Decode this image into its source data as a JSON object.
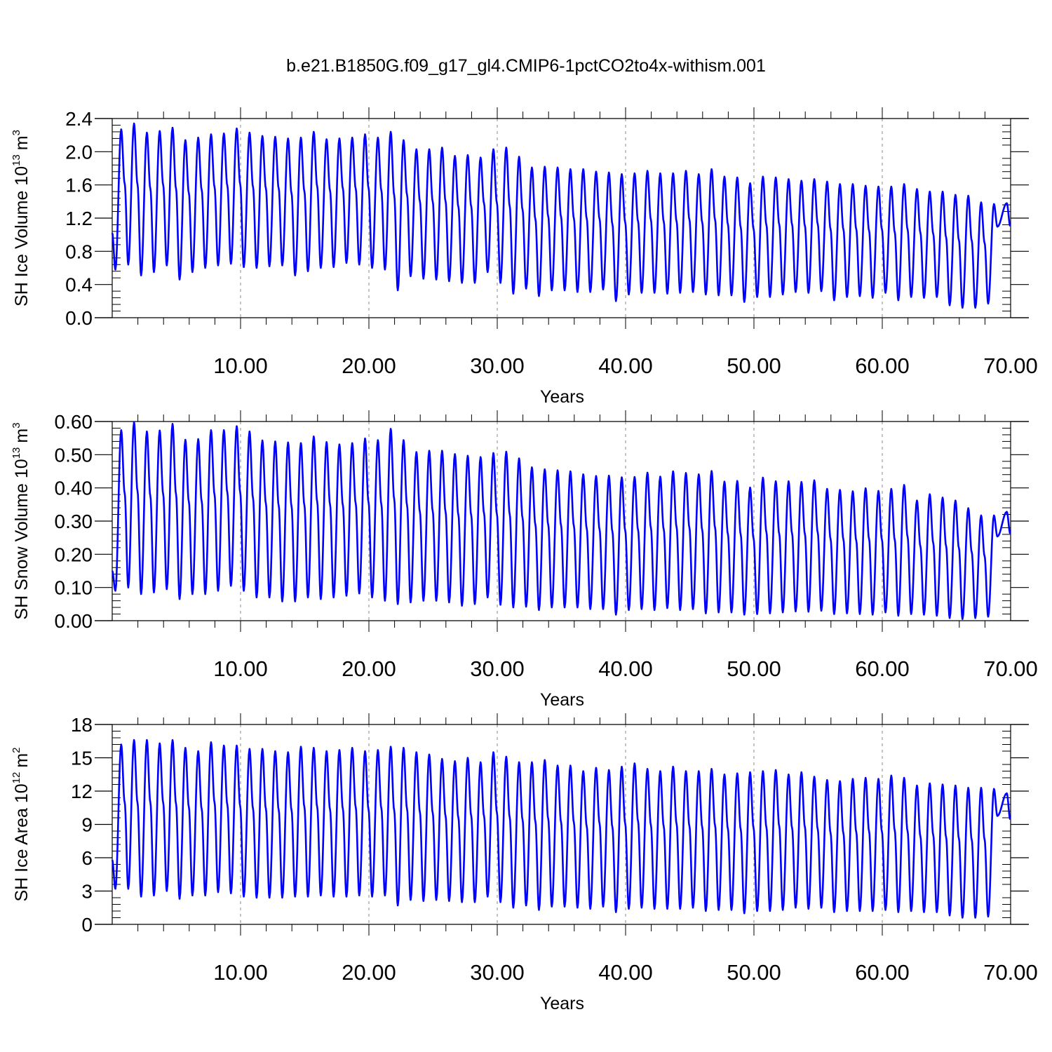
{
  "title": "b.e21.B1850G.f09_g17_gl4.CMIP6-1pctCO2to4x-withism.001",
  "colors": {
    "line": "#0000ff",
    "axis": "#000000",
    "grid": "#888888"
  },
  "chart_data": [
    {
      "type": "line",
      "ylabel": "SH Ice Volume",
      "ylabel_unit_base": "10",
      "ylabel_unit_exp": "13",
      "ylabel_unit_tail": "m",
      "ylabel_unit_tail_exp": "3",
      "xlabel": "Years",
      "xlim": [
        0.0,
        70.0
      ],
      "ylim": [
        0.0,
        2.4
      ],
      "xticks": [
        10,
        20,
        30,
        40,
        50,
        60,
        70
      ],
      "xtick_labels": [
        "10.00",
        "20.00",
        "30.00",
        "40.00",
        "50.00",
        "60.00",
        "70.00"
      ],
      "yticks": [
        0.0,
        0.4,
        0.8,
        1.2,
        1.6,
        2.0,
        2.4
      ],
      "ytick_labels": [
        "0.0",
        "0.4",
        "0.8",
        "1.2",
        "1.6",
        "2.0",
        "2.4"
      ],
      "grid": "vertical dashed at labeled x ticks",
      "series": [
        {
          "start_value": 1.02,
          "annual_max": [
            2.27,
            2.34,
            2.23,
            2.25,
            2.29,
            2.14,
            2.17,
            2.21,
            2.22,
            2.28,
            2.23,
            2.19,
            2.18,
            2.16,
            2.17,
            2.24,
            2.15,
            2.16,
            2.17,
            2.21,
            2.17,
            2.24,
            2.14,
            2.03,
            2.03,
            2.05,
            1.95,
            1.96,
            1.93,
            2.03,
            2.05,
            1.94,
            1.81,
            1.82,
            1.81,
            1.79,
            1.79,
            1.76,
            1.75,
            1.73,
            1.74,
            1.77,
            1.74,
            1.74,
            1.77,
            1.73,
            1.79,
            1.7,
            1.69,
            1.62,
            1.7,
            1.69,
            1.67,
            1.65,
            1.67,
            1.64,
            1.61,
            1.61,
            1.59,
            1.58,
            1.58,
            1.61,
            1.55,
            1.52,
            1.52,
            1.48,
            1.47,
            1.39,
            1.37,
            1.38
          ],
          "annual_min": [
            0.58,
            0.64,
            0.51,
            0.55,
            0.63,
            0.46,
            0.55,
            0.6,
            0.63,
            0.65,
            0.61,
            0.6,
            0.62,
            0.63,
            0.51,
            0.56,
            0.6,
            0.61,
            0.66,
            0.64,
            0.6,
            0.58,
            0.33,
            0.5,
            0.47,
            0.46,
            0.44,
            0.42,
            0.42,
            0.55,
            0.42,
            0.29,
            0.35,
            0.26,
            0.33,
            0.33,
            0.31,
            0.31,
            0.34,
            0.2,
            0.28,
            0.3,
            0.3,
            0.29,
            0.3,
            0.31,
            0.28,
            0.27,
            0.27,
            0.19,
            0.25,
            0.25,
            0.28,
            0.31,
            0.3,
            0.32,
            0.21,
            0.25,
            0.26,
            0.24,
            0.3,
            0.21,
            0.25,
            0.24,
            0.25,
            0.15,
            0.12,
            0.12,
            0.17
          ]
        }
      ]
    },
    {
      "type": "line",
      "ylabel": "SH Snow Volume",
      "ylabel_unit_base": "10",
      "ylabel_unit_exp": "13",
      "ylabel_unit_tail": "m",
      "ylabel_unit_tail_exp": "3",
      "xlabel": "Years",
      "xlim": [
        0.0,
        70.0
      ],
      "ylim": [
        0.0,
        0.6
      ],
      "xticks": [
        10,
        20,
        30,
        40,
        50,
        60,
        70
      ],
      "xtick_labels": [
        "10.00",
        "20.00",
        "30.00",
        "40.00",
        "50.00",
        "60.00",
        "70.00"
      ],
      "yticks": [
        0.0,
        0.1,
        0.2,
        0.3,
        0.4,
        0.5,
        0.6
      ],
      "ytick_labels": [
        "0.00",
        "0.10",
        "0.20",
        "0.30",
        "0.40",
        "0.50",
        "0.60"
      ],
      "grid": "vertical dashed at labeled x ticks",
      "series": [
        {
          "start_value": 0.15,
          "annual_max": [
            0.574,
            0.598,
            0.57,
            0.573,
            0.593,
            0.545,
            0.547,
            0.574,
            0.574,
            0.586,
            0.57,
            0.543,
            0.54,
            0.537,
            0.535,
            0.555,
            0.538,
            0.531,
            0.535,
            0.549,
            0.544,
            0.578,
            0.544,
            0.508,
            0.512,
            0.512,
            0.502,
            0.497,
            0.493,
            0.505,
            0.509,
            0.489,
            0.462,
            0.456,
            0.453,
            0.45,
            0.441,
            0.436,
            0.437,
            0.432,
            0.433,
            0.446,
            0.434,
            0.45,
            0.445,
            0.441,
            0.451,
            0.419,
            0.421,
            0.401,
            0.431,
            0.42,
            0.42,
            0.418,
            0.423,
            0.397,
            0.394,
            0.39,
            0.399,
            0.391,
            0.397,
            0.409,
            0.362,
            0.381,
            0.371,
            0.362,
            0.339,
            0.317,
            0.317,
            0.328
          ],
          "annual_min": [
            0.09,
            0.1,
            0.08,
            0.085,
            0.095,
            0.065,
            0.08,
            0.08,
            0.09,
            0.105,
            0.09,
            0.07,
            0.07,
            0.058,
            0.058,
            0.07,
            0.065,
            0.07,
            0.075,
            0.082,
            0.07,
            0.06,
            0.05,
            0.055,
            0.06,
            0.06,
            0.055,
            0.045,
            0.05,
            0.07,
            0.048,
            0.04,
            0.042,
            0.032,
            0.04,
            0.04,
            0.04,
            0.035,
            0.035,
            0.018,
            0.032,
            0.035,
            0.032,
            0.038,
            0.032,
            0.035,
            0.022,
            0.025,
            0.025,
            0.018,
            0.02,
            0.022,
            0.025,
            0.028,
            0.027,
            0.03,
            0.02,
            0.022,
            0.02,
            0.018,
            0.025,
            0.015,
            0.02,
            0.018,
            0.015,
            0.008,
            0.005,
            0.008,
            0.012
          ]
        }
      ]
    },
    {
      "type": "line",
      "ylabel": "SH Ice Area",
      "ylabel_unit_base": "10",
      "ylabel_unit_exp": "12",
      "ylabel_unit_tail": "m",
      "ylabel_unit_tail_exp": "2",
      "xlabel": "Years",
      "xlim": [
        0.0,
        70.0
      ],
      "ylim": [
        0,
        18
      ],
      "xticks": [
        10,
        20,
        30,
        40,
        50,
        60,
        70
      ],
      "xtick_labels": [
        "10.00",
        "20.00",
        "30.00",
        "40.00",
        "50.00",
        "60.00",
        "70.00"
      ],
      "yticks": [
        0,
        3,
        6,
        9,
        12,
        15,
        18
      ],
      "ytick_labels": [
        "0",
        "3",
        "6",
        "9",
        "12",
        "15",
        "18"
      ],
      "grid": "vertical dashed at labeled x ticks",
      "series": [
        {
          "start_value": 5.8,
          "annual_max": [
            16.2,
            16.6,
            16.6,
            16.3,
            16.6,
            15.9,
            15.6,
            16.4,
            16.1,
            16.1,
            15.8,
            15.8,
            15.6,
            15.5,
            16.0,
            15.9,
            15.6,
            15.7,
            15.9,
            15.6,
            15.7,
            16.0,
            15.9,
            15.5,
            15.3,
            14.9,
            14.7,
            15.0,
            14.6,
            15.5,
            15.1,
            14.6,
            14.6,
            14.8,
            14.3,
            14.3,
            13.8,
            14.1,
            13.9,
            14.2,
            14.5,
            14.0,
            13.8,
            14.2,
            13.8,
            13.8,
            14.0,
            13.5,
            13.6,
            13.7,
            13.8,
            13.9,
            13.5,
            13.7,
            13.3,
            13.0,
            12.9,
            13.1,
            13.2,
            13.1,
            13.4,
            13.2,
            12.5,
            12.7,
            12.6,
            12.5,
            12.3,
            12.3,
            12.2,
            11.8
          ],
          "annual_min": [
            3.2,
            3.2,
            2.5,
            2.6,
            3.0,
            2.3,
            2.6,
            2.6,
            2.9,
            2.8,
            2.5,
            2.4,
            2.4,
            2.4,
            2.5,
            2.5,
            2.6,
            2.5,
            2.5,
            2.6,
            2.5,
            2.6,
            1.7,
            2.2,
            2.1,
            2.2,
            2.1,
            2.0,
            2.0,
            2.5,
            2.0,
            1.5,
            1.7,
            1.3,
            1.6,
            1.6,
            1.5,
            1.4,
            1.6,
            1.1,
            1.4,
            1.5,
            1.4,
            1.4,
            1.4,
            1.5,
            1.2,
            1.3,
            1.3,
            1.0,
            1.2,
            1.2,
            1.3,
            1.5,
            1.4,
            1.5,
            1.1,
            1.2,
            1.2,
            1.2,
            1.3,
            1.1,
            1.2,
            1.1,
            1.1,
            0.8,
            0.6,
            0.6,
            0.7
          ]
        }
      ]
    }
  ]
}
